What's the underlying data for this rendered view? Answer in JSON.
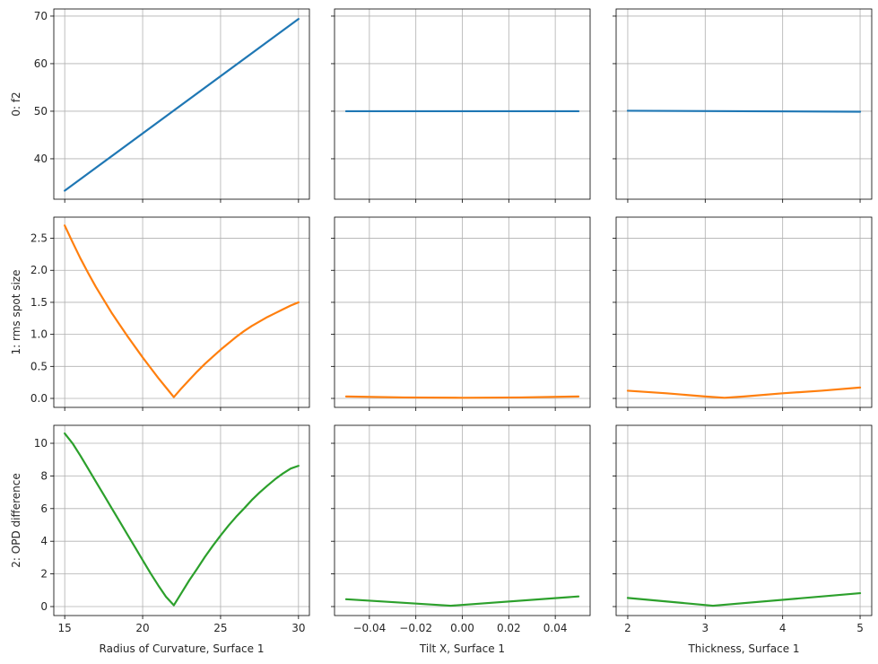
{
  "chart_data": {
    "type": "line",
    "layout": "3x3 grid, rows share y-axis, columns share x-axis",
    "grid": true,
    "columns": [
      {
        "xlabel": "Radius of Curvature, Surface 1",
        "xlim": [
          14.3,
          30.7
        ],
        "xticks": [
          15,
          20,
          25,
          30
        ],
        "xtick_labels": [
          "15",
          "20",
          "25",
          "30"
        ]
      },
      {
        "xlabel": "Tilt X, Surface 1",
        "xlim": [
          -0.055,
          0.055
        ],
        "xticks": [
          -0.04,
          -0.02,
          0.0,
          0.02,
          0.04
        ],
        "xtick_labels": [
          "−0.04",
          "−0.02",
          "0.00",
          "0.02",
          "0.04"
        ]
      },
      {
        "xlabel": "Thickness, Surface 1",
        "xlim": [
          1.85,
          5.15
        ],
        "xticks": [
          2,
          3,
          4,
          5
        ],
        "xtick_labels": [
          "2",
          "3",
          "4",
          "5"
        ]
      }
    ],
    "rows": [
      {
        "ylabel": "0: f2",
        "color": "#1f77b4",
        "ylim": [
          31.5,
          71.5
        ],
        "yticks": [
          40,
          50,
          60,
          70
        ],
        "ytick_labels": [
          "40",
          "50",
          "60",
          "70"
        ]
      },
      {
        "ylabel": "1: rms spot size",
        "color": "#ff7f0e",
        "ylim": [
          -0.14,
          2.83
        ],
        "yticks": [
          0.0,
          0.5,
          1.0,
          1.5,
          2.0,
          2.5
        ],
        "ytick_labels": [
          "0.0",
          "0.5",
          "1.0",
          "1.5",
          "2.0",
          "2.5"
        ]
      },
      {
        "ylabel": "2: OPD difference",
        "color": "#2ca02c",
        "ylim": [
          -0.55,
          11.1
        ],
        "yticks": [
          0,
          2,
          4,
          6,
          8,
          10
        ],
        "ytick_labels": [
          "0",
          "2",
          "4",
          "6",
          "8",
          "10"
        ]
      }
    ],
    "panels": [
      [
        {
          "x": [
            15,
            30
          ],
          "y": [
            33.3,
            69.4
          ]
        },
        {
          "x": [
            -0.05,
            0.05
          ],
          "y": [
            50.0,
            50.0
          ]
        },
        {
          "x": [
            2,
            5
          ],
          "y": [
            50.1,
            49.9
          ]
        }
      ],
      [
        {
          "x": [
            15,
            15.5,
            16,
            16.5,
            17,
            17.5,
            18,
            18.5,
            19,
            19.5,
            20,
            20.5,
            21,
            21.5,
            22,
            22.5,
            23,
            23.5,
            24,
            24.5,
            25,
            25.5,
            26,
            26.5,
            27,
            27.5,
            28,
            28.5,
            29,
            29.5,
            30
          ],
          "y": [
            2.7,
            2.44,
            2.19,
            1.96,
            1.74,
            1.54,
            1.34,
            1.16,
            0.98,
            0.81,
            0.64,
            0.48,
            0.32,
            0.17,
            0.02,
            0.16,
            0.29,
            0.42,
            0.54,
            0.65,
            0.76,
            0.86,
            0.96,
            1.05,
            1.13,
            1.2,
            1.27,
            1.33,
            1.39,
            1.45,
            1.5
          ]
        },
        {
          "x": [
            -0.05,
            -0.025,
            0.0,
            0.025,
            0.05
          ],
          "y": [
            0.03,
            0.015,
            0.01,
            0.015,
            0.03
          ]
        },
        {
          "x": [
            2,
            2.5,
            3.0,
            3.25,
            3.5,
            4.0,
            4.5,
            5.0
          ],
          "y": [
            0.12,
            0.08,
            0.03,
            0.01,
            0.03,
            0.08,
            0.12,
            0.17
          ]
        }
      ],
      [
        {
          "x": [
            15,
            15.5,
            16,
            16.5,
            17,
            17.5,
            18,
            18.5,
            19,
            19.5,
            20,
            20.5,
            21,
            21.5,
            22,
            22.5,
            23,
            23.5,
            24,
            24.5,
            25,
            25.5,
            26,
            26.5,
            27,
            27.5,
            28,
            28.5,
            29,
            29.5,
            30
          ],
          "y": [
            10.6,
            10.0,
            9.25,
            8.45,
            7.65,
            6.85,
            6.05,
            5.25,
            4.45,
            3.65,
            2.85,
            2.05,
            1.3,
            0.6,
            0.08,
            0.85,
            1.62,
            2.32,
            3.05,
            3.72,
            4.35,
            4.95,
            5.5,
            6.0,
            6.52,
            6.98,
            7.4,
            7.8,
            8.15,
            8.45,
            8.62
          ]
        },
        {
          "x": [
            -0.05,
            -0.005,
            0.05
          ],
          "y": [
            0.45,
            0.05,
            0.62
          ]
        },
        {
          "x": [
            2,
            3.1,
            5
          ],
          "y": [
            0.53,
            0.05,
            0.82
          ]
        }
      ]
    ]
  }
}
